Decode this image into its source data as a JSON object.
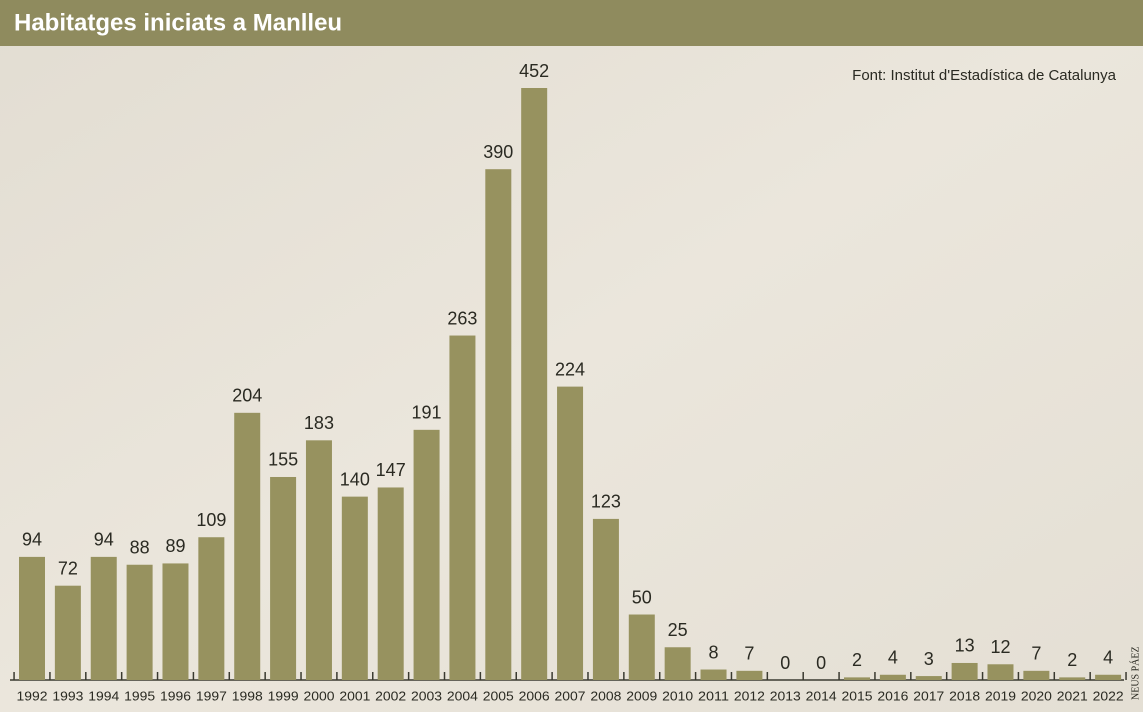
{
  "chart_data": {
    "type": "bar",
    "title": "Habitatges iniciats a Manlleu",
    "source": "Font: Institut d'Estadística de Catalunya",
    "credit": "NEUS PÁEZ",
    "categories": [
      "1992",
      "1993",
      "1994",
      "1995",
      "1996",
      "1997",
      "1998",
      "1999",
      "2000",
      "2001",
      "2002",
      "2003",
      "2004",
      "2005",
      "2006",
      "2007",
      "2008",
      "2009",
      "2010",
      "2011",
      "2012",
      "2013",
      "2014",
      "2015",
      "2016",
      "2017",
      "2018",
      "2019",
      "2020",
      "2021",
      "2022"
    ],
    "values": [
      94,
      72,
      94,
      88,
      89,
      109,
      204,
      155,
      183,
      140,
      147,
      191,
      263,
      390,
      452,
      224,
      123,
      50,
      25,
      8,
      7,
      0,
      0,
      2,
      4,
      3,
      13,
      12,
      7,
      2,
      4
    ],
    "color": "#97925f"
  }
}
